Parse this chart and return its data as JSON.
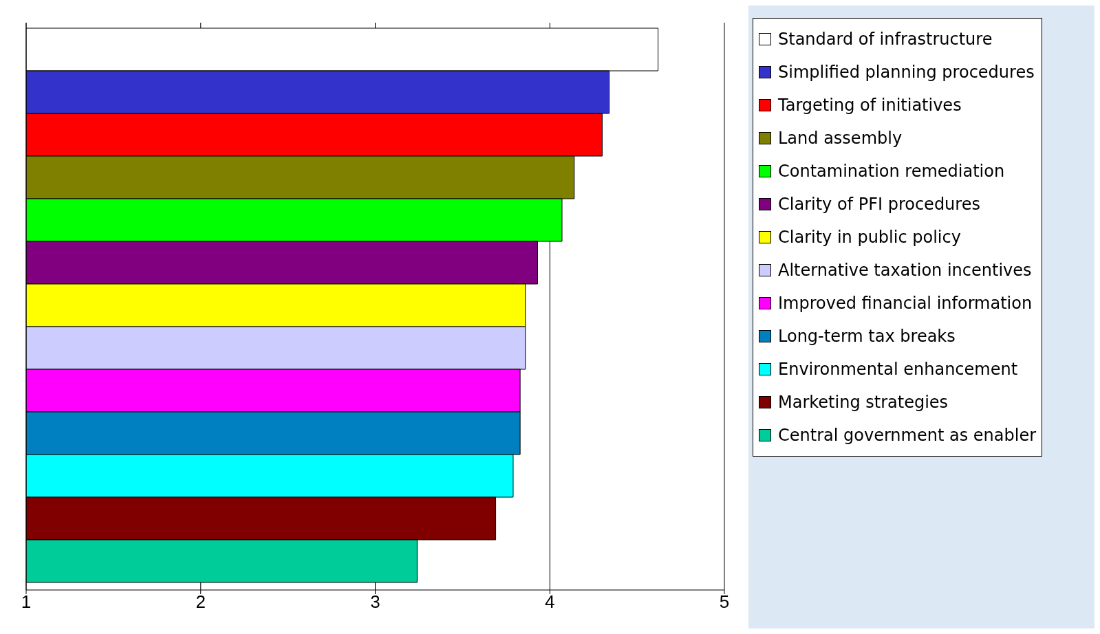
{
  "chart_data": {
    "type": "bar",
    "orientation": "horizontal",
    "categories": [
      null
    ],
    "xlim": [
      1,
      5
    ],
    "xticks": [
      1,
      2,
      3,
      4,
      5
    ],
    "grid": "x",
    "legend": "right",
    "tick_labels": "x",
    "series": [
      {
        "name": "Standard of infrastructure",
        "color": "#ffffff",
        "values": [
          4.62
        ]
      },
      {
        "name": "Simplified planning procedures",
        "color": "#3333cc",
        "values": [
          4.34
        ]
      },
      {
        "name": "Targeting of initiatives",
        "color": "#ff0000",
        "values": [
          4.3
        ]
      },
      {
        "name": "Land assembly",
        "color": "#808000",
        "values": [
          4.14
        ]
      },
      {
        "name": "Contamination remediation",
        "color": "#00ff00",
        "values": [
          4.07
        ]
      },
      {
        "name": "Clarity of PFI procedures",
        "color": "#800080",
        "values": [
          3.93
        ]
      },
      {
        "name": "Clarity in public policy",
        "color": "#ffff00",
        "values": [
          3.86
        ]
      },
      {
        "name": "Alternative taxation incentives",
        "color": "#ccccff",
        "values": [
          3.86
        ]
      },
      {
        "name": "Improved financial information",
        "color": "#ff00ff",
        "values": [
          3.83
        ]
      },
      {
        "name": "Long-term tax breaks",
        "color": "#0080c0",
        "values": [
          3.83
        ]
      },
      {
        "name": "Environmental enhancement",
        "color": "#00ffff",
        "values": [
          3.79
        ]
      },
      {
        "name": "Marketing strategies",
        "color": "#800000",
        "values": [
          3.69
        ]
      },
      {
        "name": "Central government as enabler",
        "color": "#00cc99",
        "values": [
          3.24
        ]
      }
    ]
  }
}
